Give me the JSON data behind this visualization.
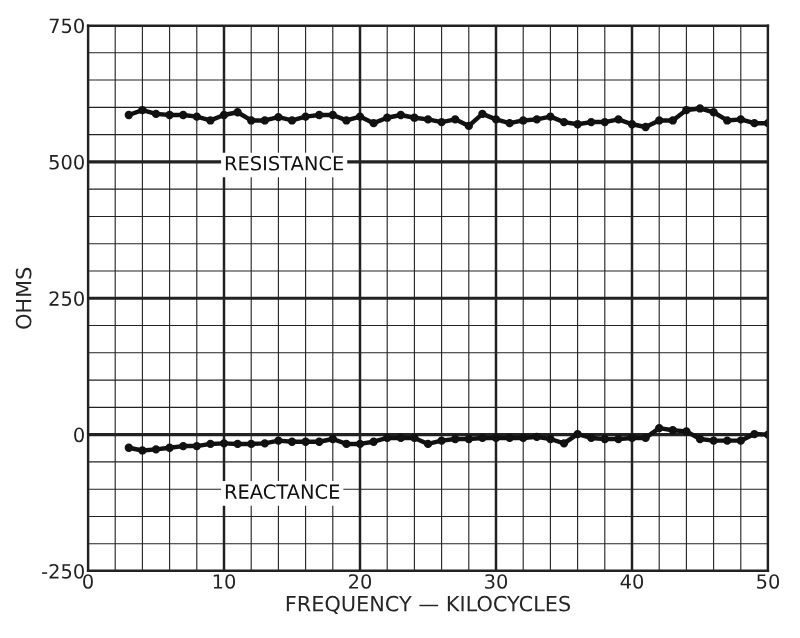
{
  "chart_data": {
    "type": "line",
    "xlabel": "FREQUENCY — KILOCYCLES",
    "ylabel": "OHMS",
    "x": [
      3,
      4,
      5,
      6,
      7,
      8,
      9,
      10,
      11,
      12,
      13,
      14,
      15,
      16,
      17,
      18,
      19,
      20,
      21,
      22,
      23,
      24,
      25,
      26,
      27,
      28,
      29,
      30,
      31,
      32,
      33,
      34,
      35,
      36,
      37,
      38,
      39,
      40,
      41,
      42,
      43,
      44,
      45,
      46,
      47,
      48,
      49,
      50
    ],
    "series": [
      {
        "name": "RESISTANCE",
        "color": "#111111",
        "values": [
          586,
          595,
          588,
          586,
          586,
          583,
          576,
          586,
          591,
          576,
          576,
          582,
          576,
          583,
          586,
          586,
          576,
          583,
          571,
          581,
          586,
          581,
          578,
          573,
          578,
          566,
          588,
          578,
          571,
          576,
          578,
          583,
          573,
          569,
          573,
          573,
          578,
          569,
          564,
          576,
          576,
          595,
          598,
          591,
          576,
          578,
          571,
          571
        ]
      },
      {
        "name": "REACTANCE",
        "color": "#111111",
        "values": [
          -24,
          -29,
          -27,
          -24,
          -21,
          -21,
          -17,
          -16,
          -17,
          -17,
          -16,
          -11,
          -13,
          -13,
          -13,
          -8,
          -17,
          -17,
          -13,
          -6,
          -6,
          -6,
          -17,
          -11,
          -8,
          -8,
          -6,
          -6,
          -6,
          -6,
          -4,
          -8,
          -16,
          1,
          -6,
          -8,
          -8,
          -6,
          -6,
          12,
          8,
          6,
          -8,
          -11,
          -11,
          -11,
          1,
          0
        ]
      }
    ],
    "xlim": [
      0,
      50
    ],
    "ylim": [
      -250,
      750
    ],
    "xticks": [
      0,
      {
        "value": 2,
        "label": null
      },
      {
        "value": 4,
        "label": null
      },
      {
        "value": 6,
        "label": null
      },
      {
        "value": 8,
        "label": null
      },
      10,
      {
        "value": 12,
        "label": null
      },
      {
        "value": 14,
        "label": null
      },
      {
        "value": 16,
        "label": null
      },
      {
        "value": 18,
        "label": null
      },
      20,
      {
        "value": 22,
        "label": null
      },
      {
        "value": 24,
        "label": null
      },
      {
        "value": 26,
        "label": null
      },
      {
        "value": 28,
        "label": null
      },
      30,
      {
        "value": 32,
        "label": null
      },
      {
        "value": 34,
        "label": null
      },
      {
        "value": 36,
        "label": null
      },
      {
        "value": 38,
        "label": null
      },
      40,
      {
        "value": 42,
        "label": null
      },
      {
        "value": 44,
        "label": null
      },
      {
        "value": 46,
        "label": null
      },
      {
        "value": 48,
        "label": null
      },
      50
    ],
    "yticks": [
      -250,
      {
        "value": -200,
        "label": null
      },
      {
        "value": -150,
        "label": null
      },
      {
        "value": -100,
        "label": null
      },
      {
        "value": -50,
        "label": null
      },
      0,
      {
        "value": 50,
        "label": null
      },
      {
        "value": 100,
        "label": null
      },
      {
        "value": 150,
        "label": null
      },
      {
        "value": 200,
        "label": null
      },
      250,
      {
        "value": 300,
        "label": null
      },
      {
        "value": 350,
        "label": null
      },
      {
        "value": 400,
        "label": null
      },
      {
        "value": 450,
        "label": null
      },
      500,
      {
        "value": 550,
        "label": null
      },
      {
        "value": 600,
        "label": null
      },
      {
        "value": 650,
        "label": null
      },
      {
        "value": 700,
        "label": null
      },
      750
    ],
    "grid": true,
    "marker": "circle",
    "line_style": "solid",
    "legend": false
  }
}
